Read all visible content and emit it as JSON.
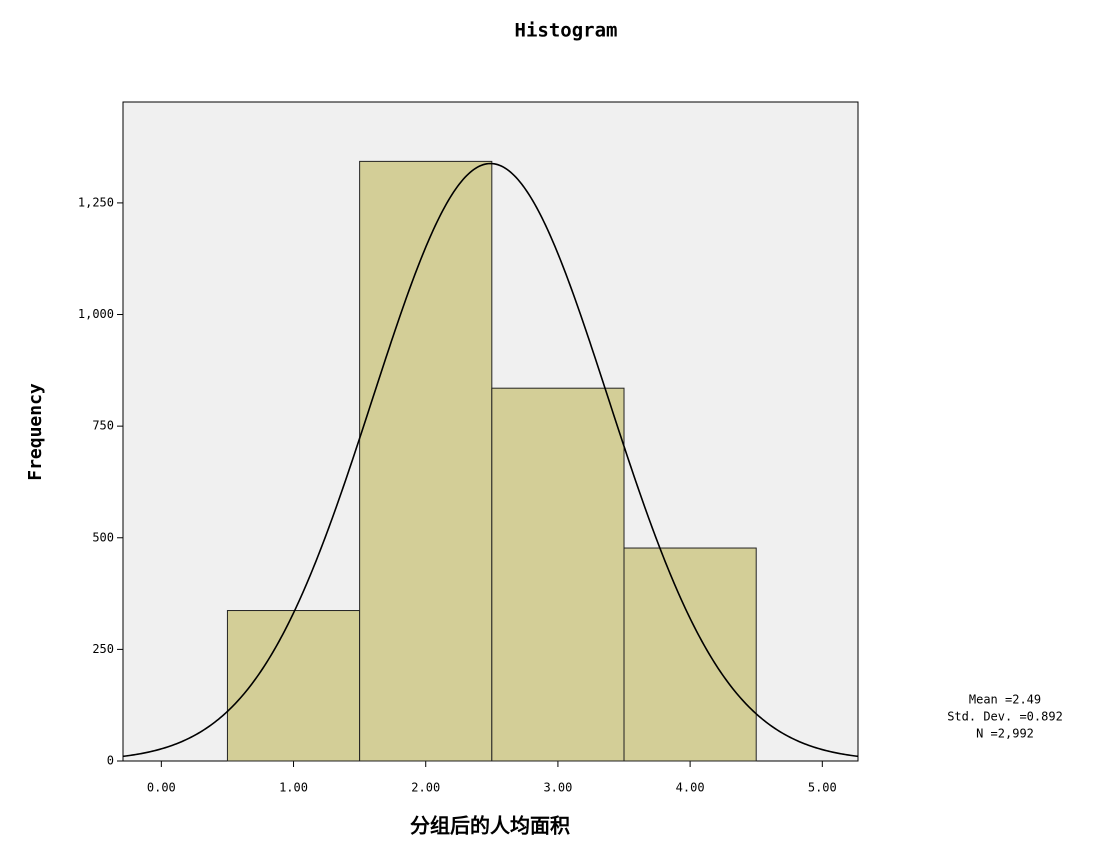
{
  "chart_data": {
    "type": "histogram",
    "title": "Histogram",
    "x_label": "分组后的人均面积",
    "y_label": "Frequency",
    "bins": [
      0.5,
      1.5,
      2.5,
      3.5,
      4.5
    ],
    "values": [
      337,
      1343,
      835,
      477
    ],
    "color": "#d3ce97",
    "plot_background": "#f0f0f0",
    "xlim": [
      -0.29,
      5.27
    ],
    "ylim": [
      0,
      1476
    ],
    "xticks": [
      {
        "value": 0,
        "label": "0.00"
      },
      {
        "value": 1,
        "label": "1.00"
      },
      {
        "value": 2,
        "label": "2.00"
      },
      {
        "value": 3,
        "label": "3.00"
      },
      {
        "value": 4,
        "label": "4.00"
      },
      {
        "value": 5,
        "label": "5.00"
      }
    ],
    "yticks": [
      0,
      250,
      500,
      750,
      {
        "value": 1000,
        "label": "1,000"
      },
      {
        "value": 1250,
        "label": "1,250"
      }
    ],
    "stats": [
      {
        "value": 2.49,
        "label": "Mean =2.49"
      },
      {
        "value": 0.892,
        "label": "Std. Dev. =0.892"
      },
      {
        "value": 2992,
        "label": "N =2,992"
      }
    ],
    "normal_curve": true
  }
}
